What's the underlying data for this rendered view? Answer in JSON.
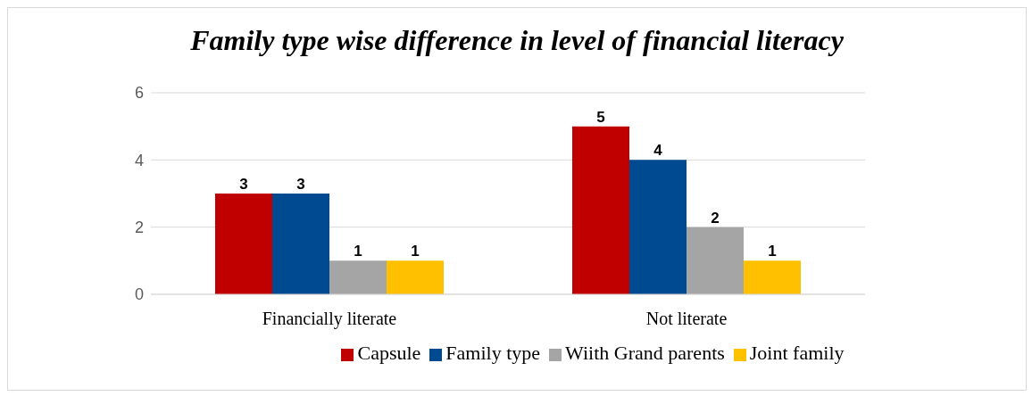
{
  "chart_data": {
    "type": "bar",
    "title": "Family type wise difference in level of financial literacy",
    "categories": [
      "Financially literate",
      "Not literate"
    ],
    "series": [
      {
        "name": "Capsule",
        "color": "#c00000",
        "values": [
          3,
          5
        ]
      },
      {
        "name": "Family type",
        "color": "#004a91",
        "values": [
          3,
          4
        ]
      },
      {
        "name": "Wiith Grand parents",
        "color": "#a5a5a5",
        "values": [
          1,
          2
        ]
      },
      {
        "name": "Joint family",
        "color": "#ffc000",
        "values": [
          1,
          1
        ]
      }
    ],
    "ylim": [
      0,
      6
    ],
    "yticks": [
      0,
      2,
      4,
      6
    ],
    "grid": "y",
    "legend": "bottom",
    "data_labels": true
  }
}
